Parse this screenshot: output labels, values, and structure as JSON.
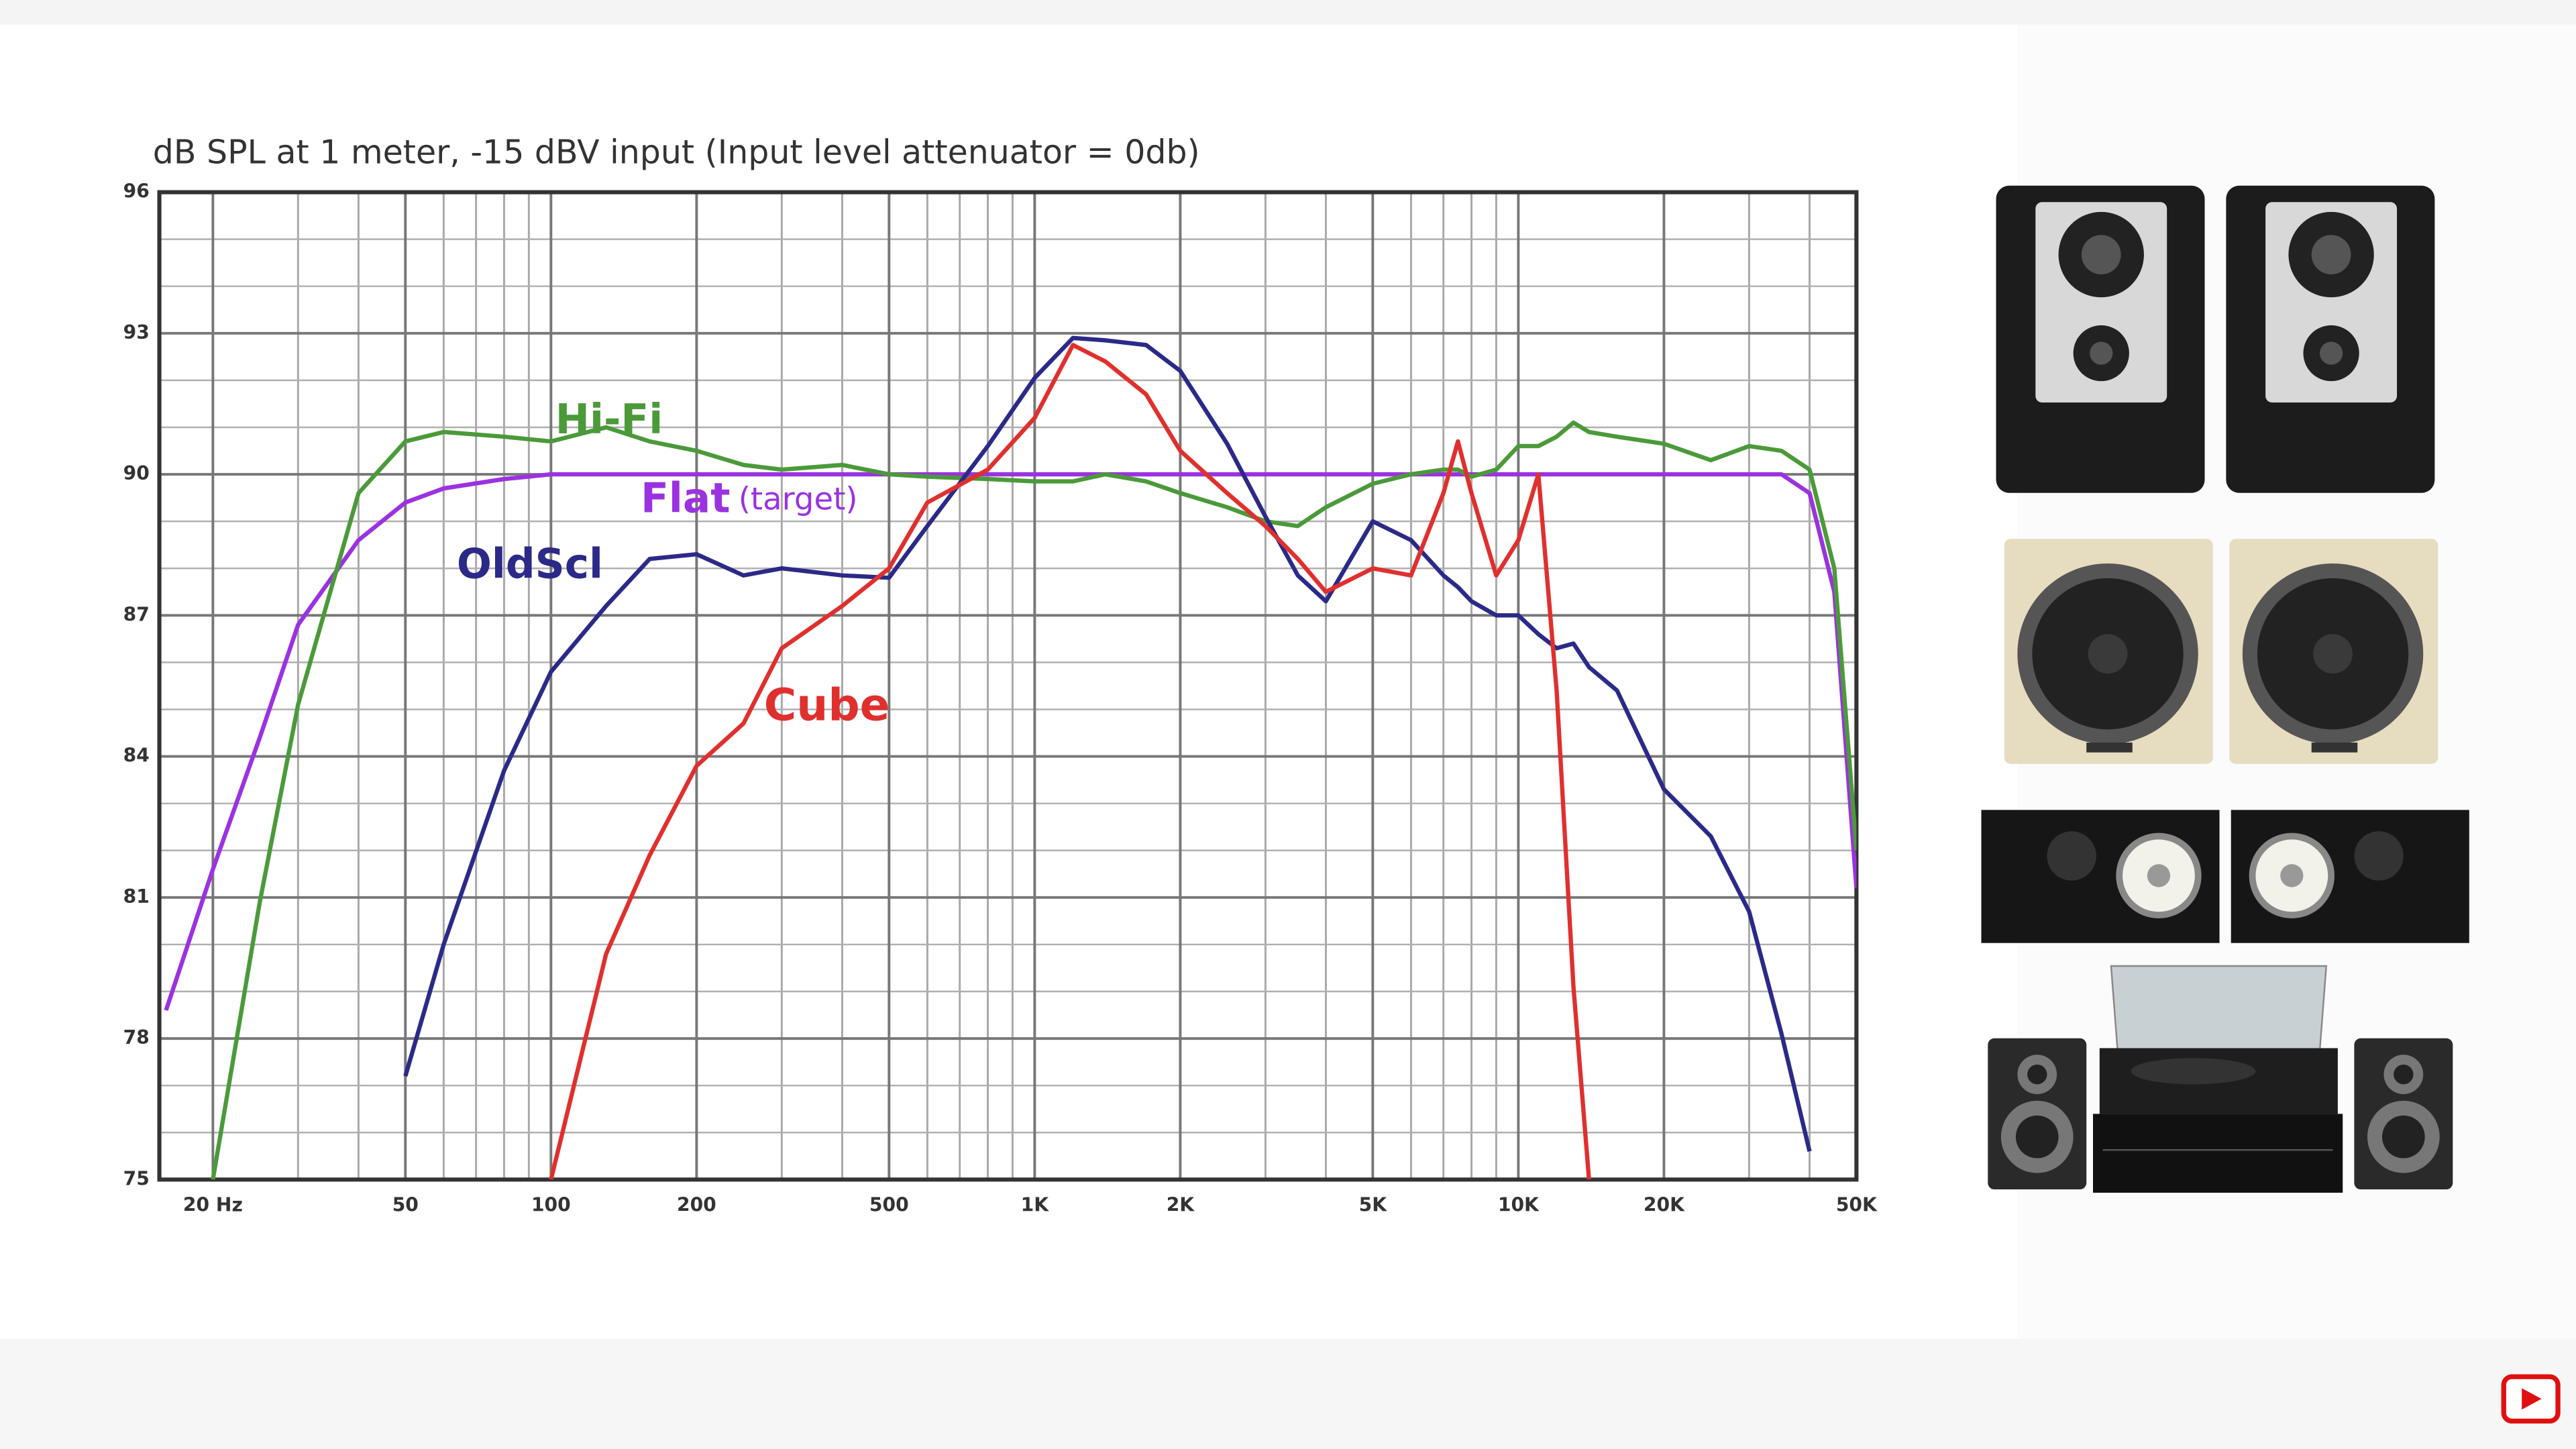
{
  "chart_data": {
    "type": "line",
    "title": "dB SPL at 1 meter, -15 dBV input (Input level attenuator = 0db)",
    "annotation": "(target)",
    "log_x": true,
    "grid": true,
    "xlim": [
      15.5,
      50000
    ],
    "ylim": [
      75,
      96
    ],
    "xticks": [
      {
        "value": 20,
        "label": "20 Hz"
      },
      50,
      100,
      200,
      500,
      {
        "value": 1000,
        "label": "1K"
      },
      {
        "value": 2000,
        "label": "2K"
      },
      {
        "value": 5000,
        "label": "5K"
      },
      {
        "value": 10000,
        "label": "10K"
      },
      {
        "value": 20000,
        "label": "20K"
      },
      {
        "value": 50000,
        "label": "50K"
      }
    ],
    "yticks": [
      75,
      78,
      81,
      84,
      87,
      90,
      93,
      96
    ],
    "x_minor_grid": [
      30,
      40,
      60,
      70,
      80,
      90,
      300,
      400,
      600,
      700,
      800,
      900,
      3000,
      4000,
      6000,
      7000,
      8000,
      9000,
      30000,
      40000
    ],
    "y_minor_grid": [
      76,
      77,
      79,
      80,
      82,
      83,
      85,
      86,
      88,
      89,
      91,
      92,
      94,
      95
    ],
    "x": [
      16,
      20,
      25,
      30,
      40,
      50,
      60,
      80,
      100,
      130,
      160,
      200,
      250,
      300,
      400,
      500,
      600,
      800,
      1000,
      1200,
      1400,
      1700,
      2000,
      2500,
      3000,
      3500,
      4000,
      5000,
      6000,
      7000,
      7500,
      8000,
      9000,
      10000,
      11000,
      12000,
      13000,
      14000,
      16000,
      20000,
      25000,
      30000,
      35000,
      40000,
      45000,
      50000
    ],
    "series": [
      {
        "name": "Flat",
        "color": "#9b32e0",
        "values": [
          78.6,
          81.6,
          84.4,
          86.8,
          88.6,
          89.4,
          89.7,
          89.9,
          90,
          90,
          90,
          90,
          90,
          90,
          90,
          90,
          90,
          90,
          90,
          90,
          90,
          90,
          90,
          90,
          90,
          90,
          90,
          90,
          90,
          90,
          90,
          90,
          90,
          90,
          90,
          90,
          90,
          90,
          90,
          90,
          90,
          90,
          90,
          89.6,
          87.5,
          81.2
        ]
      },
      {
        "name": "Hi-Fi",
        "color": "#4b9a3a",
        "values": [
          null,
          75,
          80.9,
          85.1,
          89.6,
          90.7,
          90.9,
          90.8,
          90.7,
          91,
          90.7,
          90.5,
          90.2,
          90.1,
          90.2,
          90,
          89.95,
          89.9,
          89.85,
          89.85,
          90,
          89.85,
          89.6,
          89.3,
          89,
          88.9,
          89.3,
          89.8,
          90,
          90.1,
          90.1,
          89.95,
          90.1,
          90.6,
          90.6,
          90.8,
          91.1,
          90.9,
          90.8,
          90.65,
          90.3,
          90.6,
          90.5,
          90.1,
          88,
          82
        ]
      },
      {
        "name": "OldScl",
        "color": "#2b2a88",
        "values": [
          null,
          null,
          null,
          null,
          null,
          77.2,
          80,
          83.7,
          85.8,
          87.2,
          88.2,
          88.3,
          87.85,
          88,
          87.85,
          87.8,
          88.9,
          90.6,
          92.05,
          92.9,
          92.85,
          92.75,
          92.2,
          90.65,
          89.1,
          87.85,
          87.3,
          89,
          88.6,
          87.85,
          87.6,
          87.3,
          87,
          87,
          86.6,
          86.3,
          86.4,
          85.9,
          85.4,
          83.3,
          82.3,
          80.7,
          78.1,
          75.6,
          null,
          null
        ]
      },
      {
        "name": "Cube",
        "color": "#e0302e",
        "values": [
          null,
          null,
          null,
          null,
          null,
          null,
          null,
          null,
          75,
          79.8,
          81.9,
          83.8,
          84.7,
          86.3,
          87.2,
          88,
          89.4,
          90.1,
          91.2,
          92.75,
          92.4,
          91.7,
          90.5,
          89.6,
          88.9,
          88.2,
          87.5,
          88,
          87.85,
          89.6,
          90.7,
          89.6,
          87.85,
          88.6,
          90,
          85.4,
          79.1,
          75,
          null,
          null,
          null,
          null,
          null,
          null,
          null,
          null
        ]
      }
    ]
  }
}
